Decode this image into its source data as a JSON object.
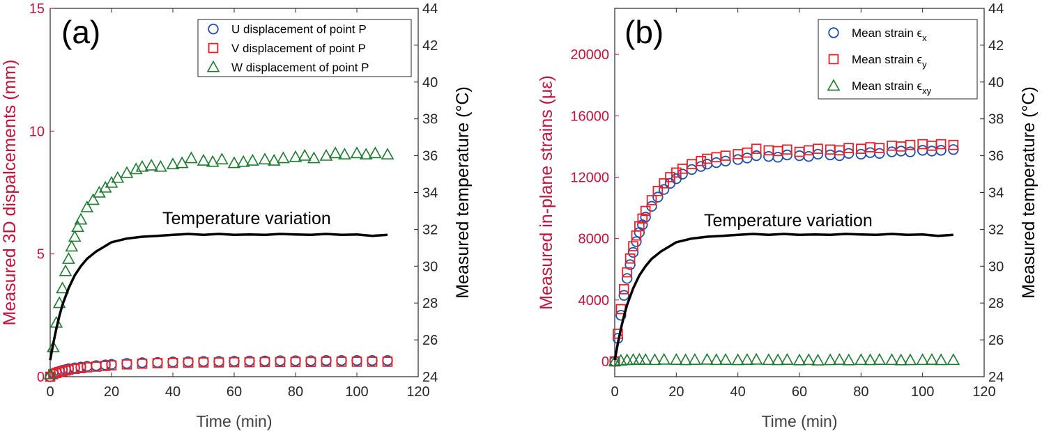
{
  "colors": {
    "left_axis": "#C0143C",
    "u": "#1F4EA8",
    "v": "#E8202A",
    "w": "#1B7A2E",
    "temp": "#000000"
  },
  "chart_data": [
    {
      "type": "scatter",
      "panel_label": "(a)",
      "xlabel": "Time (min)",
      "ylabel_left": "Measured 3D dispalcements (mm)",
      "ylabel_right": "Measured temperature (°C)",
      "xlim": [
        0,
        120
      ],
      "ylim_left": [
        0,
        15
      ],
      "ylim_right": [
        24,
        44
      ],
      "xticks": [
        0,
        20,
        40,
        60,
        80,
        100,
        120
      ],
      "yticks_left": [
        0,
        5,
        10,
        15
      ],
      "yticks_right": [
        24,
        26,
        28,
        30,
        32,
        34,
        36,
        38,
        40,
        42,
        44
      ],
      "annotation": "Temperature variation",
      "legend_position": "top-right",
      "series": [
        {
          "name": "U displacement of point P",
          "marker": "circle",
          "color_key": "u",
          "axis": "left",
          "x": [
            0,
            1,
            2,
            3,
            4,
            5,
            6,
            8,
            10,
            12,
            15,
            18,
            20,
            25,
            30,
            35,
            40,
            45,
            50,
            55,
            60,
            65,
            70,
            75,
            80,
            85,
            90,
            95,
            100,
            105,
            110
          ],
          "values": [
            0,
            0.12,
            0.18,
            0.22,
            0.26,
            0.29,
            0.32,
            0.36,
            0.39,
            0.42,
            0.45,
            0.48,
            0.5,
            0.54,
            0.57,
            0.58,
            0.6,
            0.61,
            0.62,
            0.62,
            0.63,
            0.64,
            0.64,
            0.65,
            0.65,
            0.65,
            0.66,
            0.66,
            0.66,
            0.66,
            0.66
          ]
        },
        {
          "name": "V displacement of point P",
          "marker": "square",
          "color_key": "v",
          "axis": "left",
          "x": [
            0,
            1,
            2,
            3,
            4,
            5,
            6,
            8,
            10,
            12,
            15,
            18,
            20,
            25,
            30,
            35,
            40,
            45,
            50,
            55,
            60,
            65,
            70,
            75,
            80,
            85,
            90,
            95,
            100,
            105,
            110
          ],
          "values": [
            0,
            0.1,
            0.15,
            0.19,
            0.22,
            0.25,
            0.28,
            0.32,
            0.35,
            0.38,
            0.41,
            0.44,
            0.46,
            0.5,
            0.53,
            0.55,
            0.56,
            0.57,
            0.58,
            0.58,
            0.59,
            0.59,
            0.6,
            0.6,
            0.6,
            0.6,
            0.61,
            0.61,
            0.61,
            0.61,
            0.61
          ]
        },
        {
          "name": "W displacement of point P",
          "marker": "triangle",
          "color_key": "w",
          "axis": "left",
          "x": [
            0,
            1,
            2,
            3,
            4,
            5,
            6,
            7,
            8,
            9,
            10,
            12,
            14,
            16,
            18,
            20,
            22,
            25,
            28,
            30,
            33,
            36,
            40,
            43,
            46,
            50,
            53,
            56,
            60,
            63,
            66,
            70,
            73,
            76,
            80,
            83,
            86,
            90,
            93,
            96,
            100,
            103,
            106,
            110
          ],
          "values": [
            0.1,
            1.2,
            2.2,
            3.0,
            3.6,
            4.3,
            4.8,
            5.3,
            5.7,
            6.1,
            6.4,
            6.9,
            7.2,
            7.5,
            7.7,
            7.9,
            8.1,
            8.3,
            8.45,
            8.55,
            8.6,
            8.55,
            8.65,
            8.7,
            8.9,
            8.8,
            8.75,
            8.85,
            8.7,
            8.75,
            8.8,
            8.85,
            8.8,
            8.9,
            8.95,
            9.0,
            8.9,
            9.0,
            9.1,
            9.05,
            9.1,
            9.05,
            9.1,
            9.05
          ]
        },
        {
          "name": "Temperature",
          "marker": "line",
          "color_key": "temp",
          "axis": "right",
          "x": [
            0,
            1,
            2,
            3,
            4,
            6,
            8,
            10,
            12,
            15,
            18,
            20,
            25,
            30,
            35,
            40,
            45,
            50,
            55,
            60,
            65,
            70,
            75,
            80,
            85,
            90,
            95,
            100,
            105,
            110
          ],
          "values": [
            24.9,
            25.8,
            26.6,
            27.3,
            27.9,
            28.8,
            29.5,
            30.0,
            30.4,
            30.8,
            31.1,
            31.3,
            31.5,
            31.6,
            31.65,
            31.7,
            31.75,
            31.7,
            31.75,
            31.7,
            31.72,
            31.7,
            31.75,
            31.72,
            31.7,
            31.75,
            31.7,
            31.72,
            31.65,
            31.7
          ]
        }
      ]
    },
    {
      "type": "scatter",
      "panel_label": "(b)",
      "xlabel": "Time (min)",
      "ylabel_left": "Measured in-plane strains (με)",
      "ylabel_right": "Measured temperature (°C)",
      "xlim": [
        0,
        120
      ],
      "ylim_left": [
        -1000,
        23000
      ],
      "ylim_right": [
        24,
        44
      ],
      "xticks": [
        0,
        20,
        40,
        60,
        80,
        100,
        120
      ],
      "yticks_left": [
        0,
        4000,
        8000,
        12000,
        16000,
        20000
      ],
      "yticks_right": [
        24,
        26,
        28,
        30,
        32,
        34,
        36,
        38,
        40,
        42,
        44
      ],
      "annotation": "Temperature variation",
      "legend_position": "top-right",
      "series": [
        {
          "name": "Mean strain ϵ",
          "subscript": "x",
          "marker": "circle",
          "color_key": "u",
          "axis": "left",
          "x": [
            0,
            1,
            2,
            3,
            4,
            5,
            6,
            7,
            8,
            9,
            10,
            12,
            14,
            16,
            18,
            20,
            22,
            25,
            28,
            30,
            33,
            36,
            40,
            43,
            46,
            50,
            53,
            56,
            60,
            63,
            66,
            70,
            73,
            76,
            80,
            83,
            86,
            90,
            93,
            96,
            100,
            103,
            106,
            110
          ],
          "values": [
            0,
            1500,
            3000,
            4300,
            5400,
            6300,
            7100,
            7800,
            8400,
            8900,
            9400,
            10100,
            10700,
            11200,
            11600,
            11900,
            12200,
            12500,
            12700,
            12850,
            12950,
            13050,
            13150,
            13250,
            13400,
            13350,
            13300,
            13450,
            13400,
            13350,
            13500,
            13450,
            13400,
            13550,
            13500,
            13600,
            13550,
            13650,
            13700,
            13650,
            13750,
            13700,
            13750,
            13800
          ]
        },
        {
          "name": "Mean strain ϵ",
          "subscript": "y",
          "marker": "square",
          "color_key": "v",
          "axis": "left",
          "x": [
            0,
            1,
            2,
            3,
            4,
            5,
            6,
            7,
            8,
            9,
            10,
            12,
            14,
            16,
            18,
            20,
            22,
            25,
            28,
            30,
            33,
            36,
            40,
            43,
            46,
            50,
            53,
            56,
            60,
            63,
            66,
            70,
            73,
            76,
            80,
            83,
            86,
            90,
            93,
            96,
            100,
            103,
            106,
            110
          ],
          "values": [
            0,
            1800,
            3400,
            4700,
            5800,
            6700,
            7500,
            8200,
            8800,
            9300,
            9800,
            10500,
            11100,
            11600,
            12000,
            12300,
            12550,
            12850,
            13050,
            13200,
            13300,
            13400,
            13500,
            13600,
            13850,
            13750,
            13700,
            13800,
            13650,
            13750,
            13850,
            13800,
            13750,
            13900,
            13850,
            13950,
            13900,
            14050,
            14000,
            14100,
            14150,
            14050,
            14150,
            14100
          ]
        },
        {
          "name": "Mean strain ϵ",
          "subscript": "xy",
          "marker": "triangle",
          "color_key": "w",
          "axis": "left",
          "x": [
            0,
            2,
            4,
            6,
            8,
            10,
            13,
            16,
            20,
            23,
            26,
            30,
            33,
            36,
            40,
            43,
            46,
            50,
            53,
            56,
            60,
            63,
            66,
            70,
            73,
            76,
            80,
            83,
            86,
            90,
            93,
            96,
            100,
            103,
            106,
            110
          ],
          "values": [
            0,
            50,
            80,
            100,
            110,
            100,
            90,
            110,
            100,
            80,
            100,
            110,
            90,
            100,
            80,
            100,
            110,
            90,
            80,
            100,
            70,
            90,
            60,
            80,
            100,
            70,
            90,
            80,
            100,
            90,
            70,
            80,
            90,
            100,
            80,
            90
          ]
        },
        {
          "name": "Temperature",
          "marker": "line",
          "color_key": "temp",
          "axis": "right",
          "x": [
            0,
            1,
            2,
            3,
            4,
            6,
            8,
            10,
            12,
            15,
            18,
            20,
            25,
            30,
            35,
            40,
            45,
            50,
            55,
            60,
            65,
            70,
            75,
            80,
            85,
            90,
            95,
            100,
            105,
            110
          ],
          "values": [
            24.9,
            25.8,
            26.6,
            27.3,
            27.9,
            28.8,
            29.5,
            30.0,
            30.4,
            30.8,
            31.1,
            31.3,
            31.5,
            31.6,
            31.65,
            31.7,
            31.75,
            31.7,
            31.75,
            31.7,
            31.72,
            31.7,
            31.75,
            31.72,
            31.7,
            31.75,
            31.7,
            31.72,
            31.65,
            31.7
          ]
        }
      ]
    }
  ]
}
